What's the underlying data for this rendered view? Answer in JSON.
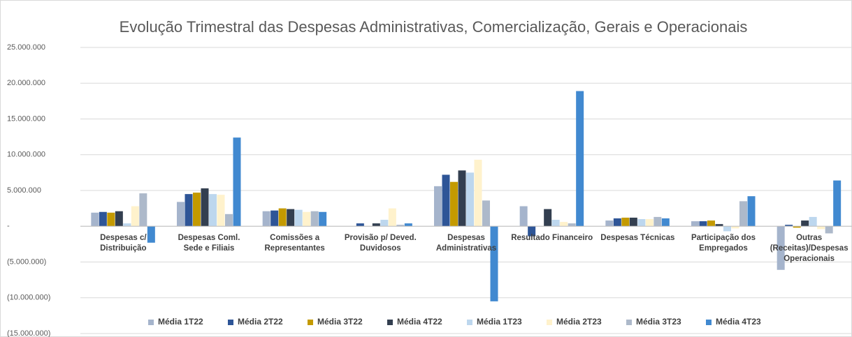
{
  "chart_data": {
    "type": "bar",
    "title": "Evolução Trimestral das Despesas Administrativas, Comercialização, Gerais e Operacionais",
    "categories": [
      "Despesas c/ Distribuição",
      "Despesas Coml. Sede e Filiais",
      "Comissões a Representantes",
      "Provisão p/ Deved. Duvidosos",
      "Despesas Administrativas",
      "Resultado Financeiro",
      "Despesas  Técnicas",
      "Participação dos Empregados",
      "Outras (Receitas)/Despesas Operacionais"
    ],
    "series": [
      {
        "name": "Média 1T22",
        "color": "#a5b4cc",
        "values": [
          1900000,
          3400000,
          2100000,
          0,
          5600000,
          2800000,
          800000,
          700000,
          -6100000
        ]
      },
      {
        "name": "Média 2T22",
        "color": "#2e5597",
        "values": [
          2000000,
          4500000,
          2200000,
          400000,
          7200000,
          -1400000,
          1100000,
          700000,
          200000
        ]
      },
      {
        "name": "Média 3T22",
        "color": "#c49a00",
        "values": [
          1900000,
          4700000,
          2500000,
          0,
          6200000,
          0,
          1200000,
          800000,
          -200000
        ]
      },
      {
        "name": "Média 4T22",
        "color": "#333f50",
        "values": [
          2100000,
          5300000,
          2400000,
          400000,
          7800000,
          2400000,
          1200000,
          300000,
          800000
        ]
      },
      {
        "name": "Média 1T23",
        "color": "#bdd7ee",
        "values": [
          400000,
          4500000,
          2300000,
          900000,
          7500000,
          900000,
          1000000,
          -700000,
          1300000
        ]
      },
      {
        "name": "Média 2T23",
        "color": "#fff2cc",
        "values": [
          2800000,
          4400000,
          2000000,
          2500000,
          9300000,
          600000,
          1000000,
          -300000,
          -400000
        ]
      },
      {
        "name": "Média 3T23",
        "color": "#adb9ca",
        "values": [
          4600000,
          1700000,
          2100000,
          200000,
          3600000,
          400000,
          1300000,
          3500000,
          -1000000
        ]
      },
      {
        "name": "Média 4T23",
        "color": "#4189d0",
        "values": [
          -2300000,
          12400000,
          2000000,
          400000,
          -10500000,
          18900000,
          1100000,
          4200000,
          6400000
        ]
      }
    ],
    "ylim": [
      -15000000,
      25000000
    ],
    "yticks": [
      {
        "value": -15000000,
        "label": "(15.000.000)"
      },
      {
        "value": -10000000,
        "label": "(10.000.000)"
      },
      {
        "value": -5000000,
        "label": "(5.000.000)"
      },
      {
        "value": 0,
        "label": "-"
      },
      {
        "value": 5000000,
        "label": "5.000.000"
      },
      {
        "value": 10000000,
        "label": "10.000.000"
      },
      {
        "value": 15000000,
        "label": "15.000.000"
      },
      {
        "value": 20000000,
        "label": "20.000.000"
      },
      {
        "value": 25000000,
        "label": "25.000.000"
      }
    ],
    "grid": true,
    "legend": "bottom"
  }
}
